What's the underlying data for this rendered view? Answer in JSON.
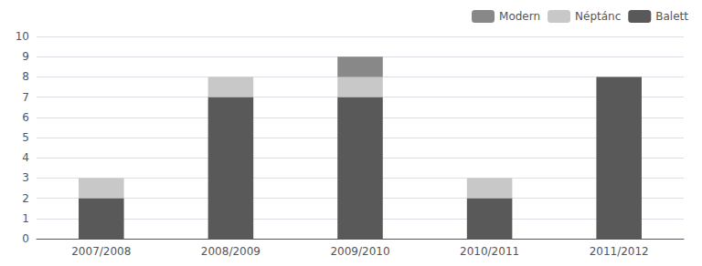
{
  "chart_data": {
    "type": "bar",
    "stacked": true,
    "categories": [
      "2007/2008",
      "2008/2009",
      "2009/2010",
      "2010/2011",
      "2011/2012"
    ],
    "series": [
      {
        "name": "Balett",
        "color": "#595959",
        "values": [
          2,
          7,
          7,
          2,
          8
        ]
      },
      {
        "name": "Néptánc",
        "color": "#c8c8c8",
        "values": [
          1,
          1,
          1,
          1,
          0
        ]
      },
      {
        "name": "Modern",
        "color": "#888888",
        "values": [
          0,
          0,
          1,
          0,
          0
        ]
      }
    ],
    "ylim": [
      0,
      10
    ],
    "yticks": [
      0,
      1,
      2,
      3,
      4,
      5,
      6,
      7,
      8,
      9,
      10
    ],
    "grid": true,
    "legend": "upper right"
  }
}
